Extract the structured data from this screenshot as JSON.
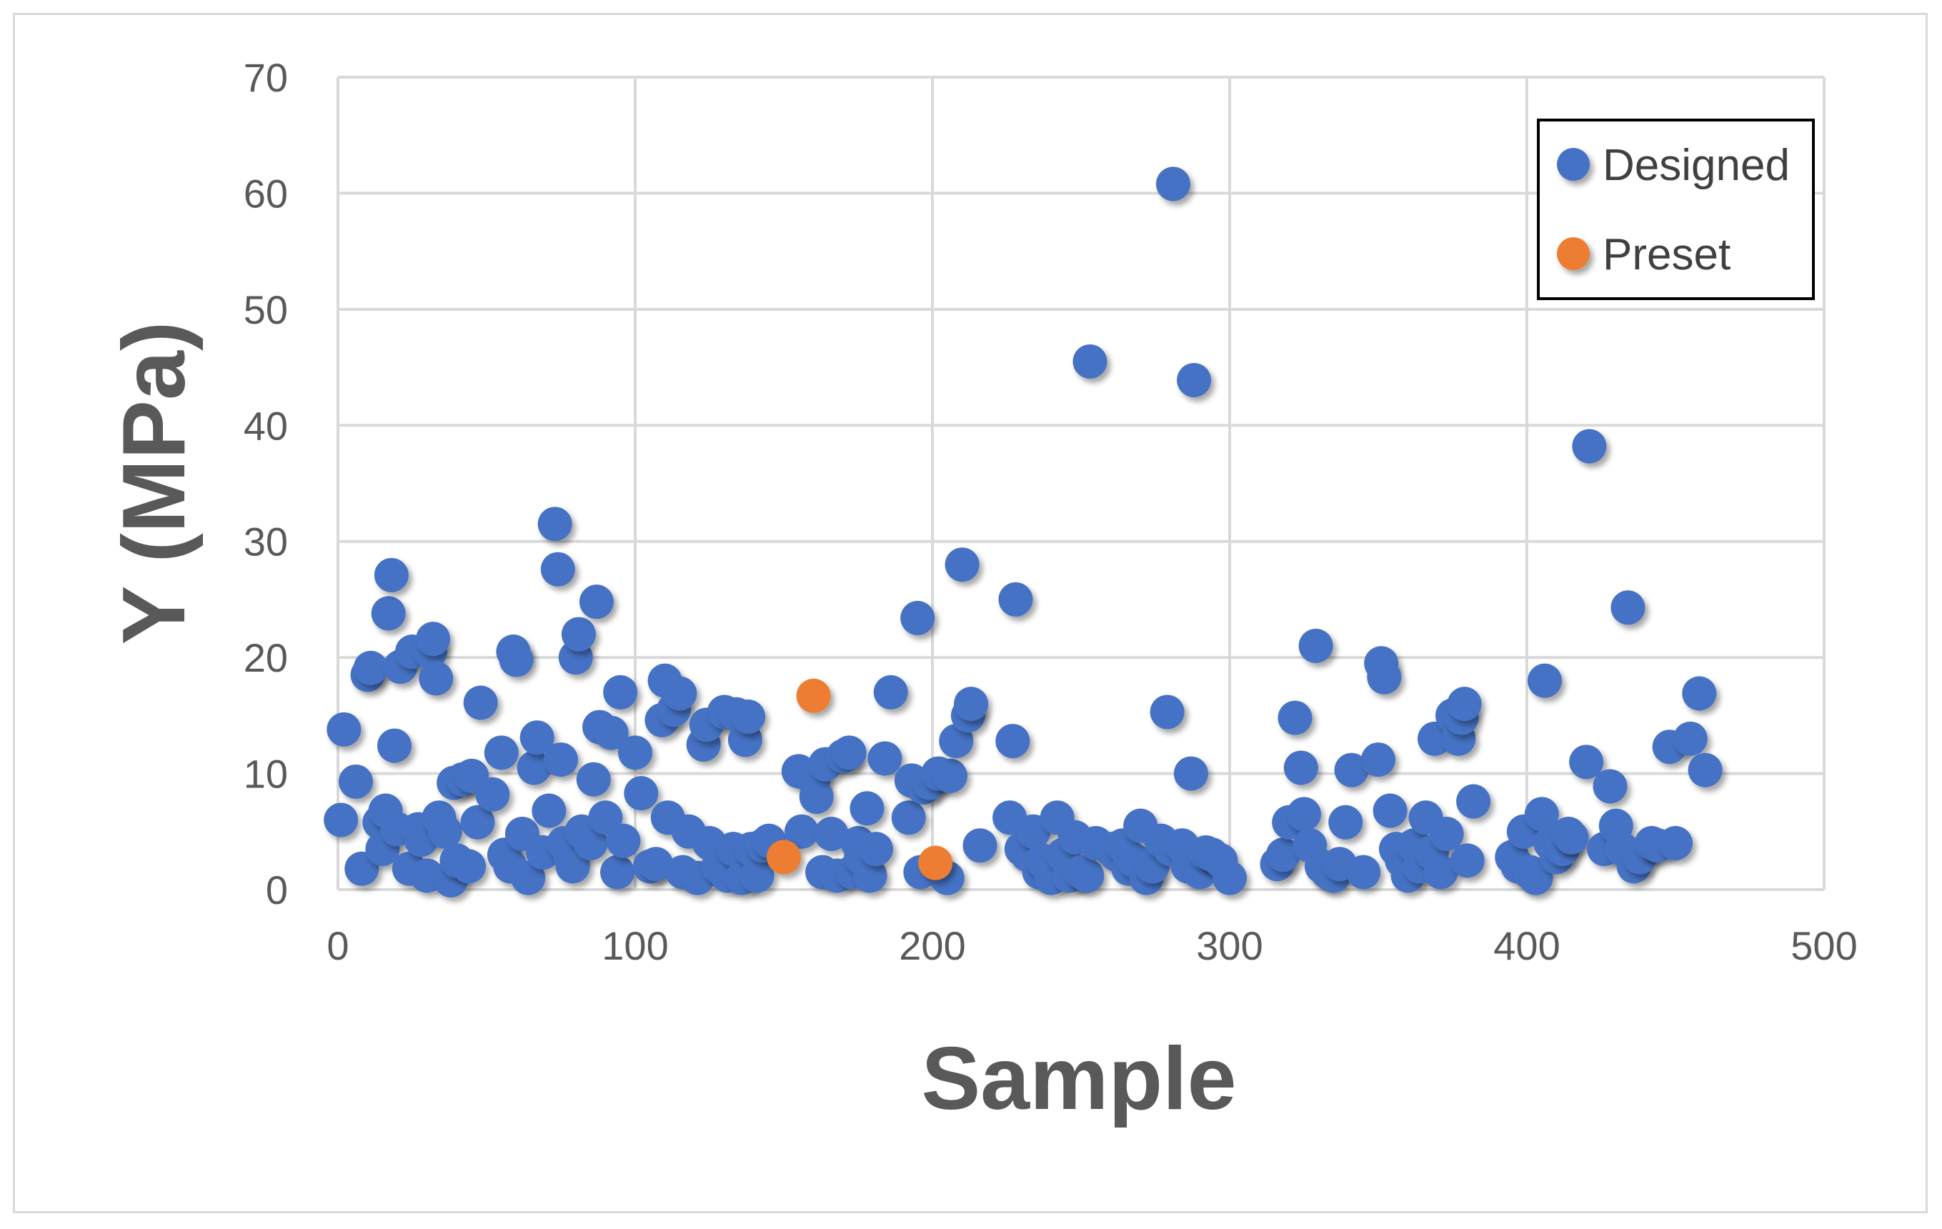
{
  "chart_data": {
    "type": "scatter",
    "xlabel": "Sample",
    "ylabel": "Y (MPa)",
    "xlim": [
      0,
      500
    ],
    "ylim": [
      0,
      70
    ],
    "xticks": [
      0,
      100,
      200,
      300,
      400,
      500
    ],
    "yticks": [
      0,
      10,
      20,
      30,
      40,
      50,
      60,
      70
    ],
    "grid": true,
    "legend_position": "top-right",
    "series": [
      {
        "name": "Designed",
        "color": "#4472c4",
        "points": [
          [
            1,
            6
          ],
          [
            2,
            13.8
          ],
          [
            6,
            9.3
          ],
          [
            8,
            1.8
          ],
          [
            10,
            18.5
          ],
          [
            11,
            19.1
          ],
          [
            14,
            5.8
          ],
          [
            15,
            3.5
          ],
          [
            16,
            6.8
          ],
          [
            17,
            23.8
          ],
          [
            18,
            27.1
          ],
          [
            19,
            12.4
          ],
          [
            20,
            5.2
          ],
          [
            21,
            19.2
          ],
          [
            24,
            1.8
          ],
          [
            25,
            20.5
          ],
          [
            27,
            5.2
          ],
          [
            28,
            4.3
          ],
          [
            30,
            1.2
          ],
          [
            31,
            20.5
          ],
          [
            32,
            21.6
          ],
          [
            33,
            18.2
          ],
          [
            34,
            6.2
          ],
          [
            36,
            5
          ],
          [
            38,
            0.8
          ],
          [
            39,
            9.2
          ],
          [
            40,
            2.5
          ],
          [
            42,
            9.5
          ],
          [
            44,
            2
          ],
          [
            45,
            9.8
          ],
          [
            47,
            5.8
          ],
          [
            48,
            16.1
          ],
          [
            52,
            8.2
          ],
          [
            55,
            11.8
          ],
          [
            56,
            3
          ],
          [
            58,
            2
          ],
          [
            59,
            20.5
          ],
          [
            60,
            19.8
          ],
          [
            62,
            4.8
          ],
          [
            64,
            1
          ],
          [
            66,
            10.5
          ],
          [
            67,
            13.1
          ],
          [
            69,
            3.2
          ],
          [
            71,
            6.8
          ],
          [
            73,
            31.5
          ],
          [
            74,
            27.6
          ],
          [
            75,
            11.2
          ],
          [
            76,
            4
          ],
          [
            78,
            3
          ],
          [
            79,
            2
          ],
          [
            80,
            20
          ],
          [
            81,
            22
          ],
          [
            82,
            5
          ],
          [
            85,
            4
          ],
          [
            86,
            9.5
          ],
          [
            87,
            24.8
          ],
          [
            88,
            14
          ],
          [
            90,
            6.2
          ],
          [
            92,
            13.5
          ],
          [
            94,
            1.5
          ],
          [
            95,
            17
          ],
          [
            96,
            4.2
          ],
          [
            100,
            11.8
          ],
          [
            102,
            8.3
          ],
          [
            105,
            2
          ],
          [
            107,
            2.2
          ],
          [
            109,
            14.6
          ],
          [
            110,
            18
          ],
          [
            111,
            6.2
          ],
          [
            113,
            15.5
          ],
          [
            115,
            16.9
          ],
          [
            116,
            1.5
          ],
          [
            118,
            5
          ],
          [
            121,
            1
          ],
          [
            123,
            12.5
          ],
          [
            124,
            14.2
          ],
          [
            125,
            4
          ],
          [
            128,
            2
          ],
          [
            130,
            15.3
          ],
          [
            131,
            1.2
          ],
          [
            133,
            3.5
          ],
          [
            134,
            15.1
          ],
          [
            136,
            1
          ],
          [
            137,
            12.9
          ],
          [
            138,
            14.9
          ],
          [
            139,
            3.5
          ],
          [
            141,
            1.2
          ],
          [
            143,
            3.8
          ],
          [
            145,
            4.2
          ],
          [
            155,
            10.2
          ],
          [
            156,
            5
          ],
          [
            160,
            9.5
          ],
          [
            161,
            8
          ],
          [
            163,
            1.5
          ],
          [
            164,
            10.8
          ],
          [
            166,
            4.8
          ],
          [
            168,
            1.2
          ],
          [
            170,
            11.5
          ],
          [
            172,
            11.8
          ],
          [
            173,
            1.5
          ],
          [
            175,
            4
          ],
          [
            176,
            2.8
          ],
          [
            178,
            7
          ],
          [
            179,
            1.2
          ],
          [
            181,
            3.5
          ],
          [
            184,
            11.3
          ],
          [
            186,
            17
          ],
          [
            192,
            6.2
          ],
          [
            193,
            9.4
          ],
          [
            195,
            23.4
          ],
          [
            196,
            1.5
          ],
          [
            197,
            8.8
          ],
          [
            199,
            9.2
          ],
          [
            202,
            10
          ],
          [
            205,
            1
          ],
          [
            206,
            9.8
          ],
          [
            208,
            12.8
          ],
          [
            210,
            28
          ],
          [
            212,
            15
          ],
          [
            213,
            16
          ],
          [
            216,
            3.8
          ],
          [
            226,
            6.2
          ],
          [
            227,
            12.8
          ],
          [
            228,
            25
          ],
          [
            230,
            3.5
          ],
          [
            232,
            3
          ],
          [
            234,
            5
          ],
          [
            236,
            1.5
          ],
          [
            237,
            2.5
          ],
          [
            240,
            1
          ],
          [
            242,
            6.2
          ],
          [
            244,
            3
          ],
          [
            246,
            1.2
          ],
          [
            248,
            4.5
          ],
          [
            250,
            1.5
          ],
          [
            252,
            1.2
          ],
          [
            253,
            45.5
          ],
          [
            255,
            4
          ],
          [
            260,
            3.5
          ],
          [
            262,
            3
          ],
          [
            264,
            3.8
          ],
          [
            266,
            1.8
          ],
          [
            268,
            2.5
          ],
          [
            270,
            5.5
          ],
          [
            272,
            1
          ],
          [
            274,
            2
          ],
          [
            277,
            4.2
          ],
          [
            279,
            15.3
          ],
          [
            280,
            3.5
          ],
          [
            281,
            60.8
          ],
          [
            284,
            3.8
          ],
          [
            286,
            2
          ],
          [
            287,
            10
          ],
          [
            288,
            43.9
          ],
          [
            290,
            1.5
          ],
          [
            292,
            3.2
          ],
          [
            294,
            3
          ],
          [
            297,
            2.5
          ],
          [
            300,
            1
          ],
          [
            316,
            2.2
          ],
          [
            318,
            3
          ],
          [
            320,
            5.8
          ],
          [
            322,
            14.8
          ],
          [
            324,
            10.5
          ],
          [
            325,
            6.5
          ],
          [
            327,
            3.8
          ],
          [
            329,
            21
          ],
          [
            331,
            2
          ],
          [
            333,
            1.5
          ],
          [
            335,
            1.2
          ],
          [
            337,
            2.2
          ],
          [
            339,
            5.8
          ],
          [
            341,
            10.3
          ],
          [
            345,
            1.5
          ],
          [
            350,
            11.2
          ],
          [
            351,
            19.5
          ],
          [
            352,
            18.3
          ],
          [
            354,
            6.8
          ],
          [
            356,
            3.5
          ],
          [
            358,
            2.5
          ],
          [
            360,
            1.2
          ],
          [
            362,
            3.8
          ],
          [
            364,
            2
          ],
          [
            366,
            6.2
          ],
          [
            368,
            3.2
          ],
          [
            369,
            13
          ],
          [
            371,
            1.5
          ],
          [
            373,
            4.8
          ],
          [
            375,
            15
          ],
          [
            377,
            13
          ],
          [
            378,
            14.8
          ],
          [
            379,
            16
          ],
          [
            380,
            2.5
          ],
          [
            382,
            7.6
          ],
          [
            395,
            2.8
          ],
          [
            397,
            2
          ],
          [
            399,
            5
          ],
          [
            401,
            1.5
          ],
          [
            403,
            1
          ],
          [
            405,
            6.5
          ],
          [
            406,
            18
          ],
          [
            408,
            4
          ],
          [
            410,
            2.8
          ],
          [
            412,
            3.5
          ],
          [
            414,
            4.8
          ],
          [
            415,
            4.5
          ],
          [
            420,
            11
          ],
          [
            421,
            38.2
          ],
          [
            426,
            3.5
          ],
          [
            428,
            8.9
          ],
          [
            430,
            5.5
          ],
          [
            432,
            3.5
          ],
          [
            434,
            24.3
          ],
          [
            436,
            2
          ],
          [
            438,
            2.8
          ],
          [
            442,
            4
          ],
          [
            444,
            3.8
          ],
          [
            448,
            12.3
          ],
          [
            450,
            4
          ],
          [
            455,
            13
          ],
          [
            458,
            16.9
          ],
          [
            460,
            10.3
          ]
        ]
      },
      {
        "name": "Preset",
        "color": "#ed7d31",
        "points": [
          [
            150,
            2.8
          ],
          [
            160,
            16.7
          ],
          [
            201,
            2.3
          ]
        ]
      }
    ]
  }
}
